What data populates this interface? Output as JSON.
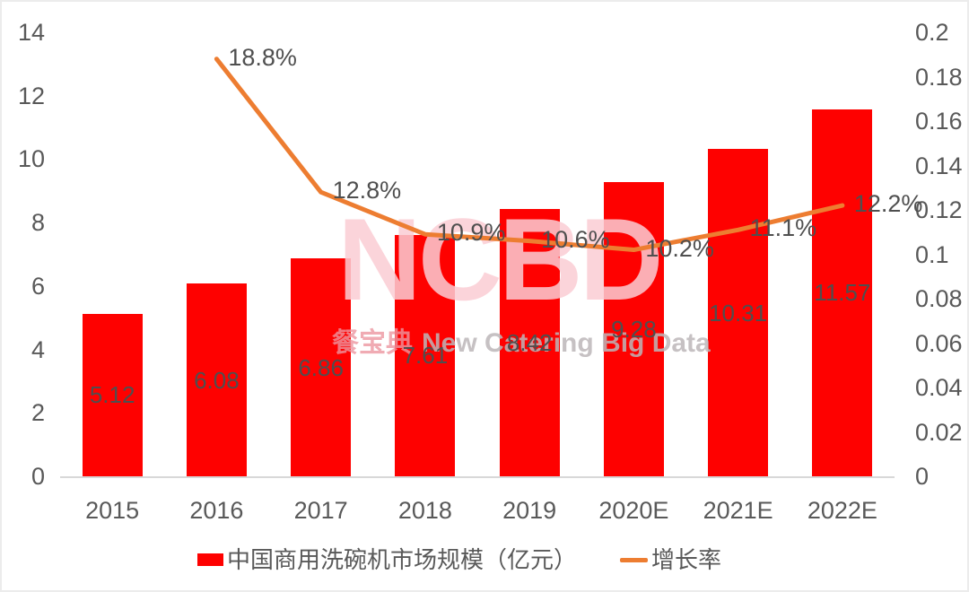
{
  "watermark": {
    "logo": "NCBD",
    "subtitle_cn": "餐宝典",
    "subtitle_en": "New Catering Big Data"
  },
  "legend": {
    "bar_label": "中国商用洗碗机市场规模（亿元）",
    "line_label": "增长率"
  },
  "colors": {
    "bar": "#fe0100",
    "line": "#ed7d31",
    "tick_text": "#595959",
    "data_label_text": "#4f4f4f",
    "axis_line": "#d8d8d8"
  },
  "chart_data": {
    "type": "combo (bar + line)",
    "title": "",
    "categories": [
      "2015",
      "2016",
      "2017",
      "2018",
      "2019",
      "2020E",
      "2021E",
      "2022E"
    ],
    "series": [
      {
        "name": "中国商用洗碗机市场规模（亿元）",
        "type": "bar",
        "axis": "left",
        "color": "#fe0100",
        "values": [
          5.12,
          6.08,
          6.86,
          7.61,
          8.42,
          9.28,
          10.31,
          11.57
        ],
        "data_labels": [
          "5.12",
          "6.08",
          "6.86",
          "7.61",
          "8.42",
          "9.28",
          "10.31",
          "11.57"
        ]
      },
      {
        "name": "增长率",
        "type": "line",
        "axis": "right",
        "color": "#ed7d31",
        "values": [
          null,
          0.188,
          0.128,
          0.109,
          0.106,
          0.102,
          0.111,
          0.122
        ],
        "data_labels": [
          null,
          "18.8%",
          "12.8%",
          "10.9%",
          "10.6%",
          "10.2%",
          "11.1%",
          "12.2%"
        ]
      }
    ],
    "left_axis": {
      "min": 0,
      "max": 14,
      "step": 2,
      "tick_labels": [
        "0",
        "2",
        "4",
        "6",
        "8",
        "10",
        "12",
        "14"
      ]
    },
    "right_axis": {
      "min": 0,
      "max": 0.2,
      "step": 0.02,
      "tick_labels": [
        "0",
        "0.02",
        "0.04",
        "0.06",
        "0.08",
        "0.1",
        "0.12",
        "0.14",
        "0.16",
        "0.18",
        "0.2"
      ]
    },
    "grid": false,
    "legend_position": "bottom"
  }
}
